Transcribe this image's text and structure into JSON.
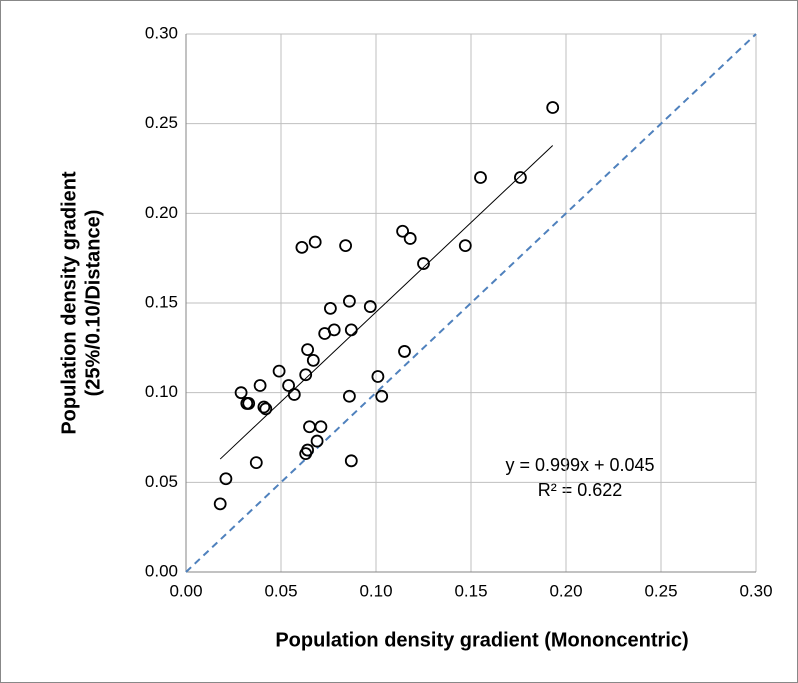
{
  "chart_data": {
    "type": "scatter",
    "x_label": "Population density gradient (Mononcentric)",
    "y_label": [
      "Population density gradient",
      "(25%/0.10/Distance)"
    ],
    "annotations": [
      "y = 0.999x + 0.045",
      "R² = 0.622"
    ],
    "trendline": {
      "slope": 0.999,
      "intercept": 0.045,
      "color": "#000000"
    },
    "diagonal_color": "#4f81bd",
    "grid": true,
    "xlim": [
      0,
      0.3
    ],
    "ylim": [
      0,
      0.3
    ],
    "xticks": [
      {
        "value": 0,
        "label": "0.00"
      },
      {
        "value": 0.05,
        "label": "0.05"
      },
      {
        "value": 0.1,
        "label": "0.10"
      },
      {
        "value": 0.15,
        "label": "0.15"
      },
      {
        "value": 0.2,
        "label": "0.20"
      },
      {
        "value": 0.25,
        "label": "0.25"
      },
      {
        "value": 0.3,
        "label": "0.30"
      }
    ],
    "yticks": [
      {
        "value": 0,
        "label": "0.00"
      },
      {
        "value": 0.05,
        "label": "0.05"
      },
      {
        "value": 0.1,
        "label": "0.10"
      },
      {
        "value": 0.15,
        "label": "0.15"
      },
      {
        "value": 0.2,
        "label": "0.20"
      },
      {
        "value": 0.25,
        "label": "0.25"
      },
      {
        "value": 0.3,
        "label": "0.30"
      }
    ],
    "series": [
      {
        "color": "#000000",
        "x": [
          0.018,
          0.021,
          0.029,
          0.032,
          0.033,
          0.037,
          0.039,
          0.041,
          0.042,
          0.049,
          0.054,
          0.057,
          0.061,
          0.063,
          0.064,
          0.063,
          0.064,
          0.065,
          0.067,
          0.068,
          0.069,
          0.071,
          0.073,
          0.076,
          0.078,
          0.084,
          0.086,
          0.087,
          0.086,
          0.087,
          0.097,
          0.101,
          0.103,
          0.114,
          0.115,
          0.118,
          0.125,
          0.147,
          0.155,
          0.176,
          0.193
        ],
        "values": [
          0.038,
          0.052,
          0.1,
          0.094,
          0.094,
          0.061,
          0.104,
          0.092,
          0.091,
          0.112,
          0.104,
          0.099,
          0.181,
          0.11,
          0.124,
          0.066,
          0.068,
          0.081,
          0.118,
          0.184,
          0.073,
          0.081,
          0.133,
          0.147,
          0.135,
          0.182,
          0.151,
          0.135,
          0.098,
          0.062,
          0.148,
          0.109,
          0.098,
          0.19,
          0.123,
          0.186,
          0.172,
          0.182,
          0.22,
          0.22,
          0.259
        ]
      }
    ]
  }
}
